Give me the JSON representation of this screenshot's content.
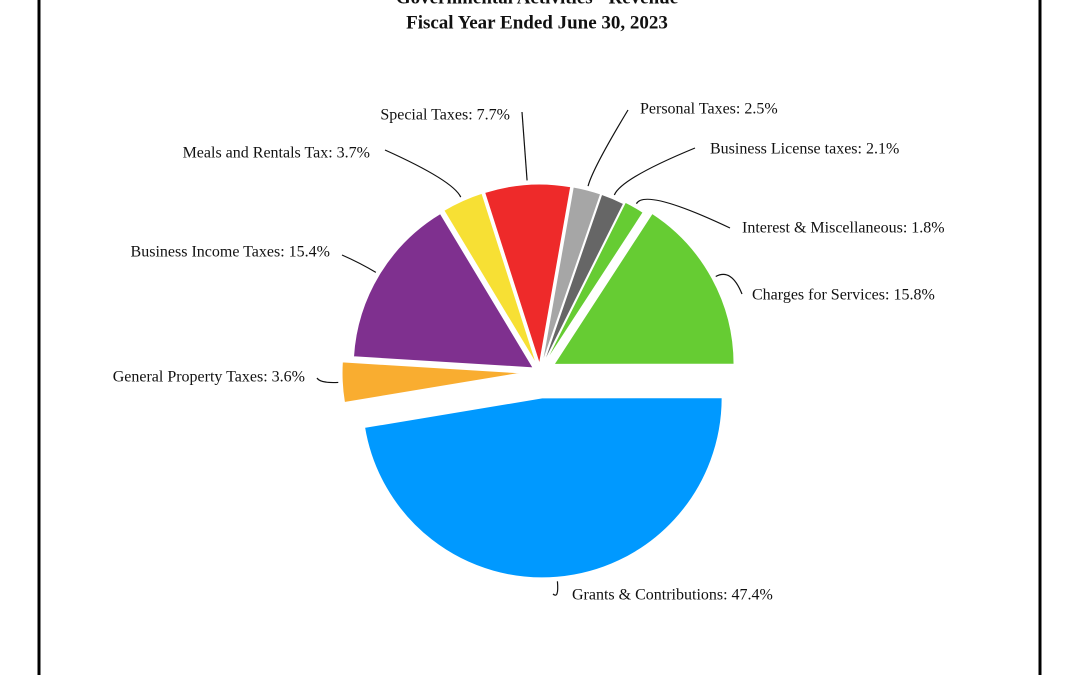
{
  "chart_data": {
    "type": "pie",
    "title": "Governmental Activities - Revenue",
    "subtitle": "Fiscal Year Ended June 30, 2023",
    "values": [
      2.5,
      2.1,
      1.8,
      15.8,
      47.4,
      3.6,
      15.4,
      3.7,
      7.7
    ],
    "value_labels": [
      "Personal Taxes: 2.5%",
      "Business License taxes: 2.1%",
      "Interest & Miscellaneous: 1.8%",
      "Charges for Services: 15.8%",
      "Grants & Contributions: 47.4%",
      "General Property Taxes: 3.6%",
      "Business Income Taxes: 15.4%",
      "Meals and Rentals Tax: 3.7%",
      "Special Taxes: 7.7%"
    ],
    "colors": [
      "#a6a6a6",
      "#666666",
      "#66cc33",
      "#66cc33",
      "#0099ff",
      "#f9ad30",
      "#7f308f",
      "#f7e034",
      "#ee2a2a"
    ]
  }
}
